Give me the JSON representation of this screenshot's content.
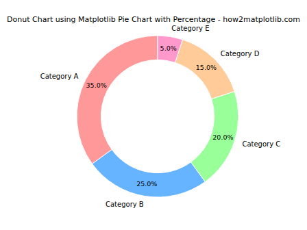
{
  "chart_data": {
    "type": "pie",
    "title": "Donut Chart using Matplotlib Pie Chart with Percentage - how2matplotlib.com",
    "categories": [
      "Category A",
      "Category B",
      "Category C",
      "Category D",
      "Category E"
    ],
    "values": [
      35,
      25,
      20,
      15,
      5
    ],
    "value_labels": [
      "35.0%",
      "25.0%",
      "20.0%",
      "15.0%",
      "5.0%"
    ],
    "colors": [
      "#ff9999",
      "#66b3ff",
      "#99ff99",
      "#ffcc99",
      "#ff99cc"
    ],
    "data_labels": true
  }
}
